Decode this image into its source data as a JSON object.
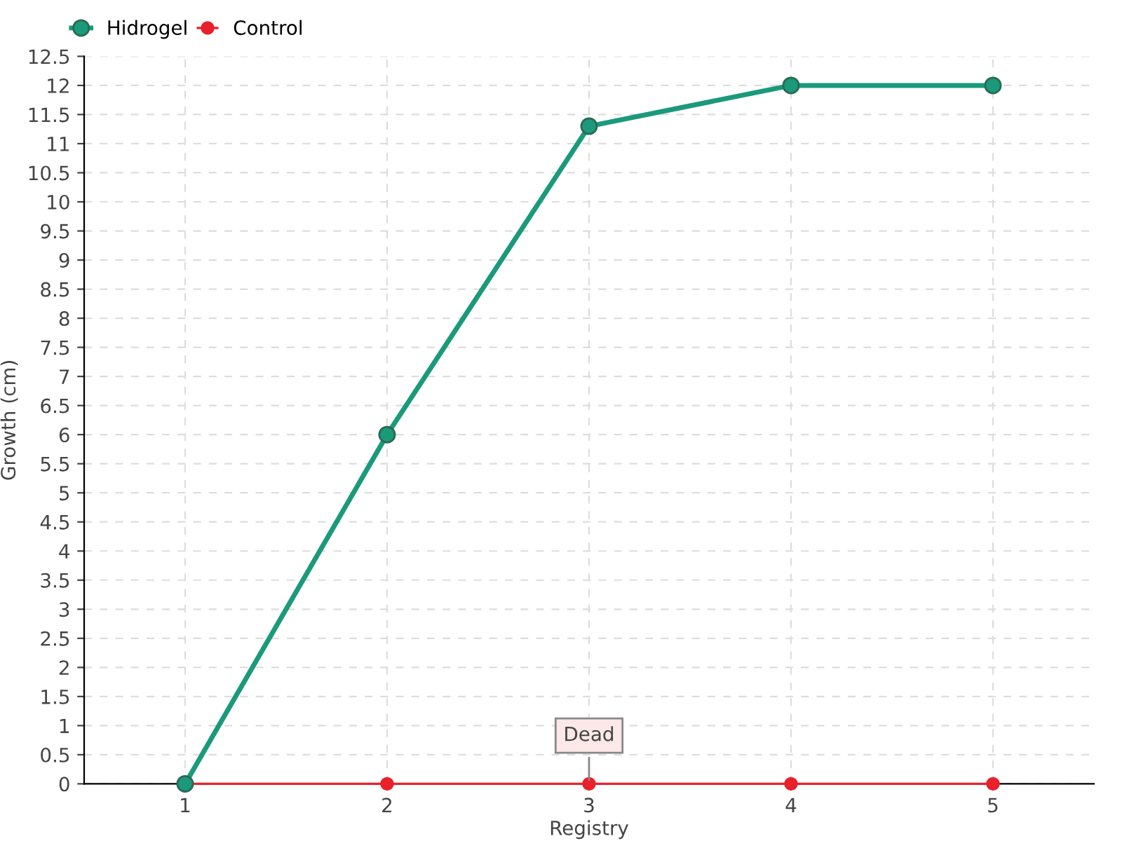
{
  "chart_data": {
    "type": "line",
    "xlabel": "Registry",
    "ylabel": "Growth (cm)",
    "categories": [
      "1",
      "2",
      "3",
      "4",
      "5"
    ],
    "series": [
      {
        "name": "Hidrogel",
        "color": "#1a9a7a",
        "values": [
          0,
          6,
          11.3,
          12,
          12
        ]
      },
      {
        "name": "Control",
        "color": "#e8212b",
        "values": [
          0,
          0,
          0,
          0,
          0
        ]
      }
    ],
    "ylim": [
      0,
      12.5
    ],
    "yticks": [
      0,
      0.5,
      1,
      1.5,
      2,
      2.5,
      3,
      3.5,
      4,
      4.5,
      5,
      5.5,
      6,
      6.5,
      7,
      7.5,
      8,
      8.5,
      9,
      9.5,
      10,
      10.5,
      11,
      11.5,
      12,
      12.5
    ],
    "annotations": [
      {
        "text": "Dead",
        "x": "3",
        "y": 0
      }
    ],
    "grid": true,
    "legend": "top left",
    "marker": "circle",
    "line_style": "solid"
  }
}
